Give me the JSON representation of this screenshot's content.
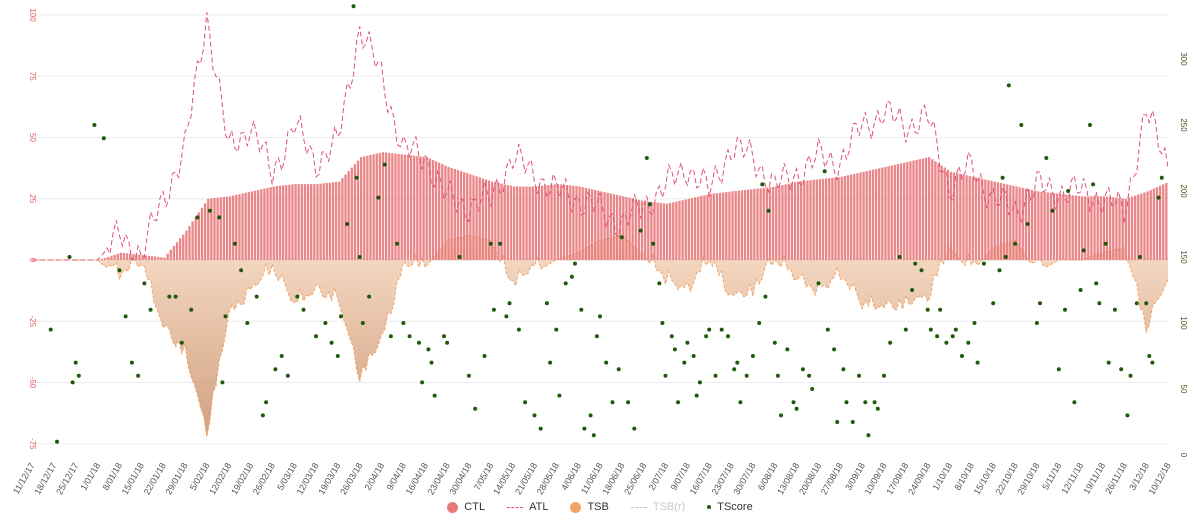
{
  "chart_data": {
    "type": "bar",
    "title": "",
    "x_start": "11/12/17",
    "x_end": "10/12/18",
    "x_step_days": 7,
    "ylim_left": [
      -80,
      100
    ],
    "ylim_right": [
      0,
      330
    ],
    "left_ticks": [
      100,
      75,
      50,
      25,
      0,
      -25,
      -50,
      -75
    ],
    "right_ticks": [
      300,
      250,
      200,
      150,
      100,
      50,
      0
    ],
    "x_tick_labels": [
      "11/12/17",
      "18/12/17",
      "25/12/17",
      "1/01/18",
      "8/01/18",
      "15/01/18",
      "22/01/18",
      "29/01/18",
      "5/02/18",
      "12/02/18",
      "19/02/18",
      "26/02/18",
      "5/03/18",
      "12/03/18",
      "19/03/18",
      "26/03/18",
      "2/04/18",
      "9/04/18",
      "16/04/18",
      "23/04/18",
      "30/04/18",
      "7/05/18",
      "14/05/18",
      "21/05/18",
      "28/05/18",
      "4/06/18",
      "11/06/18",
      "18/06/18",
      "25/06/18",
      "2/07/18",
      "9/07/18",
      "16/07/18",
      "23/07/18",
      "30/07/18",
      "6/08/18",
      "13/08/18",
      "20/08/18",
      "27/08/18",
      "3/09/18",
      "10/09/18",
      "17/09/18",
      "24/09/18",
      "1/10/18",
      "8/10/18",
      "15/10/18",
      "22/10/18",
      "29/10/18",
      "5/11/18",
      "12/11/18",
      "19/11/18",
      "26/11/18",
      "3/12/18",
      "10/12/18"
    ],
    "series": [
      {
        "name": "CTL",
        "type": "bar",
        "axis": "left",
        "color": "#e8797b",
        "visible": true
      },
      {
        "name": "ATL",
        "type": "line",
        "style": "dashed",
        "axis": "left",
        "color": "#e0507a",
        "visible": true
      },
      {
        "name": "TSB",
        "type": "area",
        "axis": "left",
        "color": "#f0a070",
        "visible": true
      },
      {
        "name": "TSB(r)",
        "type": "line",
        "style": "dashed",
        "axis": "left",
        "color": "#c8c8c8",
        "visible": false
      },
      {
        "name": "TScore",
        "type": "scatter",
        "axis": "right",
        "color": "#2f6b0e",
        "visible": true
      }
    ],
    "ctl_weekly": [
      0,
      0,
      0,
      0,
      3,
      2,
      1,
      12,
      25,
      26,
      28,
      30,
      31,
      31,
      32,
      42,
      44,
      43,
      42,
      38,
      35,
      32,
      30,
      30,
      31,
      30,
      28,
      26,
      24,
      23,
      25,
      27,
      28,
      29,
      30,
      32,
      33,
      34,
      36,
      38,
      40,
      42,
      36,
      34,
      32,
      30,
      28,
      27,
      26,
      26,
      25,
      28,
      32,
      31
    ],
    "atl_weekly": [
      0,
      0,
      0,
      0,
      10,
      2,
      25,
      45,
      100,
      45,
      55,
      35,
      55,
      40,
      48,
      95,
      75,
      45,
      42,
      25,
      22,
      25,
      42,
      35,
      28,
      25,
      20,
      15,
      22,
      30,
      38,
      28,
      46,
      42,
      30,
      35,
      42,
      40,
      55,
      60,
      55,
      58,
      30,
      38,
      25,
      20,
      30,
      28,
      28,
      25,
      20,
      60,
      40
    ],
    "tsb_weekly": [
      0,
      0,
      0,
      0,
      -8,
      -2,
      -30,
      -40,
      -73,
      -25,
      -15,
      -5,
      -20,
      -15,
      -18,
      -50,
      -35,
      -5,
      -3,
      8,
      10,
      8,
      -12,
      -5,
      0,
      3,
      8,
      10,
      2,
      -10,
      -15,
      0,
      -18,
      -15,
      0,
      -10,
      -15,
      -8,
      -20,
      -22,
      -20,
      -18,
      5,
      -5,
      5,
      8,
      -5,
      0,
      0,
      3,
      5,
      -30,
      -10
    ],
    "tscore": [
      [
        6,
        95
      ],
      [
        8,
        10
      ],
      [
        12,
        150
      ],
      [
        13,
        55
      ],
      [
        14,
        70
      ],
      [
        15,
        60
      ],
      [
        20,
        250
      ],
      [
        23,
        240
      ],
      [
        28,
        140
      ],
      [
        30,
        105
      ],
      [
        32,
        70
      ],
      [
        34,
        60
      ],
      [
        36,
        130
      ],
      [
        38,
        110
      ],
      [
        44,
        120
      ],
      [
        46,
        120
      ],
      [
        48,
        85
      ],
      [
        51,
        110
      ],
      [
        53,
        180
      ],
      [
        57,
        185
      ],
      [
        60,
        180
      ],
      [
        61,
        55
      ],
      [
        62,
        105
      ],
      [
        65,
        160
      ],
      [
        67,
        140
      ],
      [
        69,
        100
      ],
      [
        72,
        120
      ],
      [
        74,
        30
      ],
      [
        75,
        40
      ],
      [
        78,
        65
      ],
      [
        80,
        75
      ],
      [
        82,
        60
      ],
      [
        85,
        120
      ],
      [
        87,
        110
      ],
      [
        91,
        90
      ],
      [
        94,
        100
      ],
      [
        96,
        85
      ],
      [
        98,
        75
      ],
      [
        99,
        105
      ],
      [
        101,
        175
      ],
      [
        103,
        340
      ],
      [
        104,
        210
      ],
      [
        105,
        150
      ],
      [
        106,
        100
      ],
      [
        108,
        120
      ],
      [
        111,
        195
      ],
      [
        113,
        220
      ],
      [
        115,
        90
      ],
      [
        117,
        160
      ],
      [
        119,
        100
      ],
      [
        121,
        90
      ],
      [
        124,
        85
      ],
      [
        125,
        55
      ],
      [
        127,
        80
      ],
      [
        128,
        70
      ],
      [
        129,
        45
      ],
      [
        132,
        90
      ],
      [
        133,
        85
      ],
      [
        137,
        150
      ],
      [
        140,
        60
      ],
      [
        142,
        35
      ],
      [
        145,
        75
      ],
      [
        147,
        160
      ],
      [
        148,
        110
      ],
      [
        150,
        160
      ],
      [
        152,
        105
      ],
      [
        153,
        115
      ],
      [
        156,
        95
      ],
      [
        158,
        40
      ],
      [
        161,
        30
      ],
      [
        163,
        20
      ],
      [
        165,
        115
      ],
      [
        166,
        70
      ],
      [
        168,
        95
      ],
      [
        169,
        45
      ],
      [
        171,
        130
      ],
      [
        173,
        135
      ],
      [
        174,
        145
      ],
      [
        176,
        110
      ],
      [
        177,
        20
      ],
      [
        179,
        30
      ],
      [
        180,
        15
      ],
      [
        181,
        90
      ],
      [
        182,
        105
      ],
      [
        184,
        70
      ],
      [
        186,
        40
      ],
      [
        188,
        65
      ],
      [
        189,
        165
      ],
      [
        191,
        40
      ],
      [
        193,
        20
      ],
      [
        195,
        170
      ],
      [
        197,
        225
      ],
      [
        198,
        190
      ],
      [
        199,
        160
      ],
      [
        201,
        130
      ],
      [
        202,
        100
      ],
      [
        203,
        60
      ],
      [
        205,
        90
      ],
      [
        206,
        80
      ],
      [
        207,
        40
      ],
      [
        209,
        70
      ],
      [
        210,
        85
      ],
      [
        212,
        75
      ],
      [
        213,
        45
      ],
      [
        214,
        55
      ],
      [
        216,
        90
      ],
      [
        217,
        95
      ],
      [
        219,
        60
      ],
      [
        221,
        95
      ],
      [
        223,
        90
      ],
      [
        225,
        65
      ],
      [
        226,
        70
      ],
      [
        227,
        40
      ],
      [
        229,
        60
      ],
      [
        231,
        75
      ],
      [
        233,
        100
      ],
      [
        234,
        205
      ],
      [
        235,
        120
      ],
      [
        236,
        185
      ],
      [
        238,
        85
      ],
      [
        239,
        60
      ],
      [
        240,
        30
      ],
      [
        242,
        80
      ],
      [
        244,
        40
      ],
      [
        245,
        35
      ],
      [
        247,
        65
      ],
      [
        249,
        60
      ],
      [
        250,
        50
      ],
      [
        252,
        130
      ],
      [
        254,
        215
      ],
      [
        255,
        95
      ],
      [
        257,
        80
      ],
      [
        258,
        25
      ],
      [
        260,
        65
      ],
      [
        261,
        40
      ],
      [
        263,
        25
      ],
      [
        265,
        60
      ],
      [
        267,
        40
      ],
      [
        268,
        15
      ],
      [
        270,
        40
      ],
      [
        271,
        35
      ],
      [
        273,
        60
      ],
      [
        275,
        85
      ],
      [
        278,
        150
      ],
      [
        280,
        95
      ],
      [
        282,
        125
      ],
      [
        283,
        145
      ],
      [
        285,
        140
      ],
      [
        287,
        110
      ],
      [
        288,
        95
      ],
      [
        290,
        90
      ],
      [
        291,
        110
      ],
      [
        293,
        85
      ],
      [
        295,
        90
      ],
      [
        296,
        95
      ],
      [
        298,
        75
      ],
      [
        300,
        85
      ],
      [
        302,
        100
      ],
      [
        303,
        70
      ],
      [
        305,
        145
      ],
      [
        308,
        115
      ],
      [
        310,
        140
      ],
      [
        311,
        210
      ],
      [
        312,
        150
      ],
      [
        313,
        280
      ],
      [
        315,
        160
      ],
      [
        317,
        250
      ],
      [
        319,
        175
      ],
      [
        322,
        100
      ],
      [
        323,
        115
      ],
      [
        325,
        225
      ],
      [
        327,
        185
      ],
      [
        329,
        65
      ],
      [
        331,
        110
      ],
      [
        332,
        200
      ],
      [
        334,
        40
      ],
      [
        336,
        125
      ],
      [
        337,
        155
      ],
      [
        339,
        250
      ],
      [
        340,
        205
      ],
      [
        341,
        130
      ],
      [
        342,
        115
      ],
      [
        344,
        160
      ],
      [
        345,
        70
      ],
      [
        347,
        110
      ],
      [
        349,
        65
      ],
      [
        351,
        30
      ],
      [
        352,
        60
      ],
      [
        354,
        115
      ],
      [
        355,
        150
      ],
      [
        357,
        115
      ],
      [
        358,
        75
      ],
      [
        359,
        70
      ],
      [
        361,
        195
      ],
      [
        362,
        210
      ]
    ]
  },
  "legend": [
    {
      "label": "CTL",
      "symbol": "dot",
      "color": "#e8797b",
      "enabled": true
    },
    {
      "label": "ATL",
      "symbol": "dash",
      "color": "#e0507a",
      "enabled": true
    },
    {
      "label": "TSB",
      "symbol": "dot",
      "color": "#f2a366",
      "enabled": true
    },
    {
      "label": "TSB(r)",
      "symbol": "dash",
      "color": "#c8c8c8",
      "enabled": false
    },
    {
      "label": "TScore",
      "symbol": "small-dot",
      "color": "#1f5a0a",
      "enabled": true
    }
  ]
}
